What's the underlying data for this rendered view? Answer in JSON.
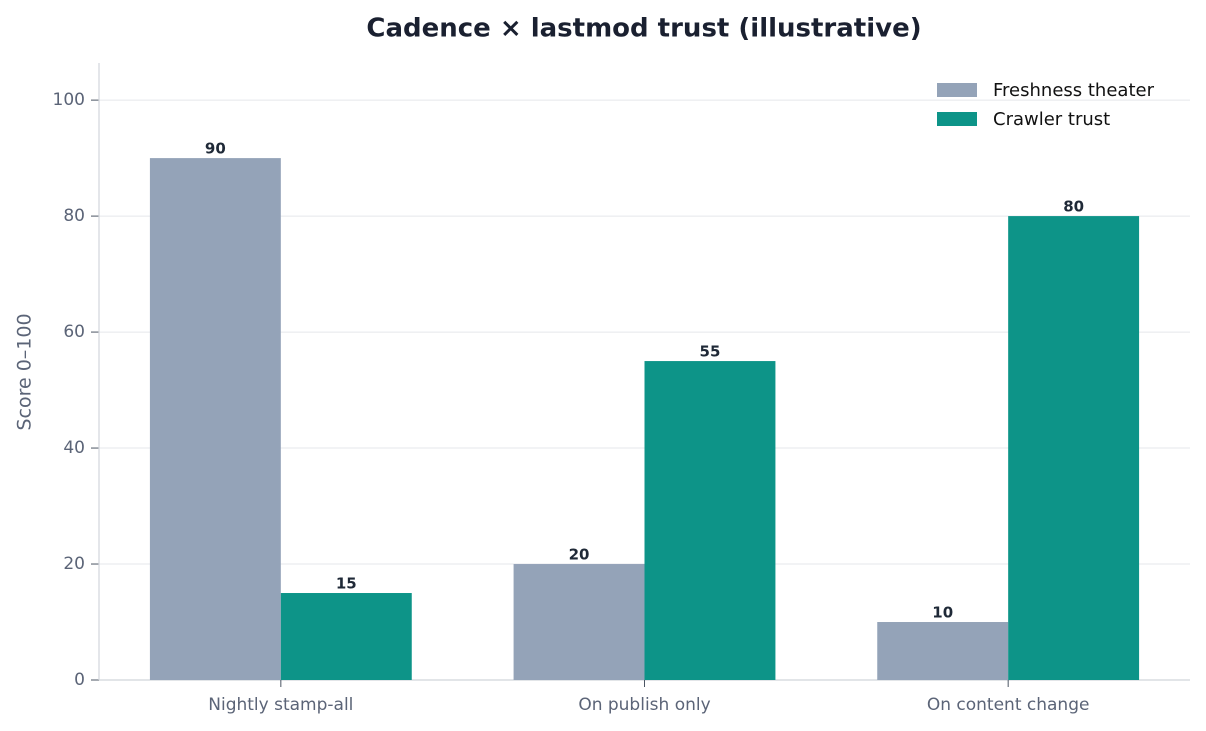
{
  "chart_data": {
    "type": "bar",
    "title": "Cadence × lastmod trust (illustrative)",
    "y_label": "Score 0–100",
    "categories": [
      "Nightly stamp-all",
      "On publish only",
      "On content change"
    ],
    "series": [
      {
        "name": "Freshness theater",
        "color": "#94a3b8",
        "values": [
          90,
          20,
          10
        ]
      },
      {
        "name": "Crawler trust",
        "color": "#0d9488",
        "values": [
          15,
          55,
          80
        ]
      }
    ],
    "ylim": [
      0,
      106.4
    ],
    "yticks": [
      0,
      20,
      40,
      60,
      80,
      100
    ],
    "grid": true,
    "legend": "upper-right"
  }
}
